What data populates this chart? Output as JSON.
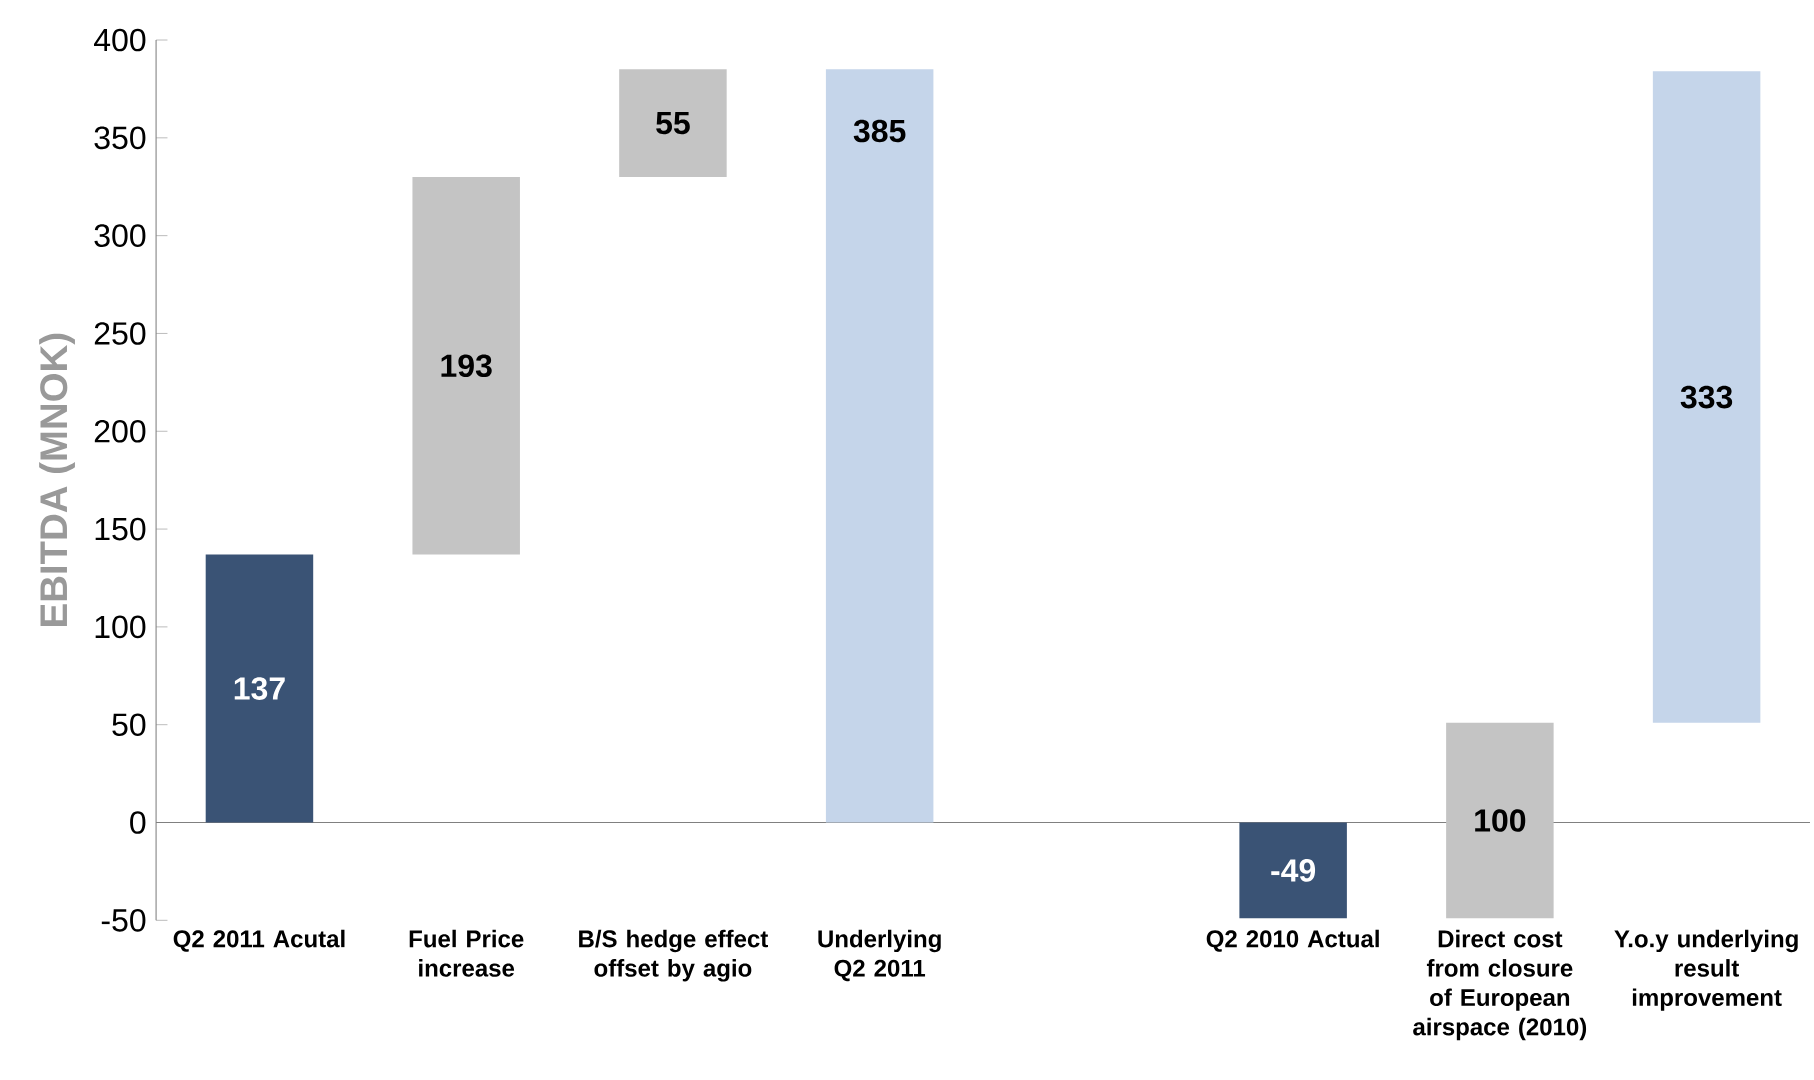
{
  "chart_data": {
    "type": "bar",
    "ylabel": "EBITDA (MNOK)",
    "categories": [
      "Q2 2011 Acutal",
      "Fuel Price increase",
      "B/S hedge effect offset by agio",
      "Underlying Q2 2011",
      null,
      "Q2 2010 Actual",
      "Direct cost from closure of European airspace (2010)",
      "Y.o.y underlying result improvement"
    ],
    "values": [
      137,
      193,
      55,
      385,
      null,
      -49,
      100,
      333
    ],
    "base": [
      0,
      137,
      330,
      0,
      null,
      0,
      -49,
      51
    ],
    "colors": [
      "#3a5375",
      "#c4c4c4",
      "#c4c4c4",
      "#c5d5ea",
      null,
      "#3a5375",
      "#c4c4c4",
      "#c5d5ea"
    ],
    "ylim": [
      -50,
      400
    ],
    "yticks": [
      -50,
      0,
      50,
      100,
      150,
      200,
      250,
      300,
      350,
      400
    ],
    "data_labels": true
  }
}
